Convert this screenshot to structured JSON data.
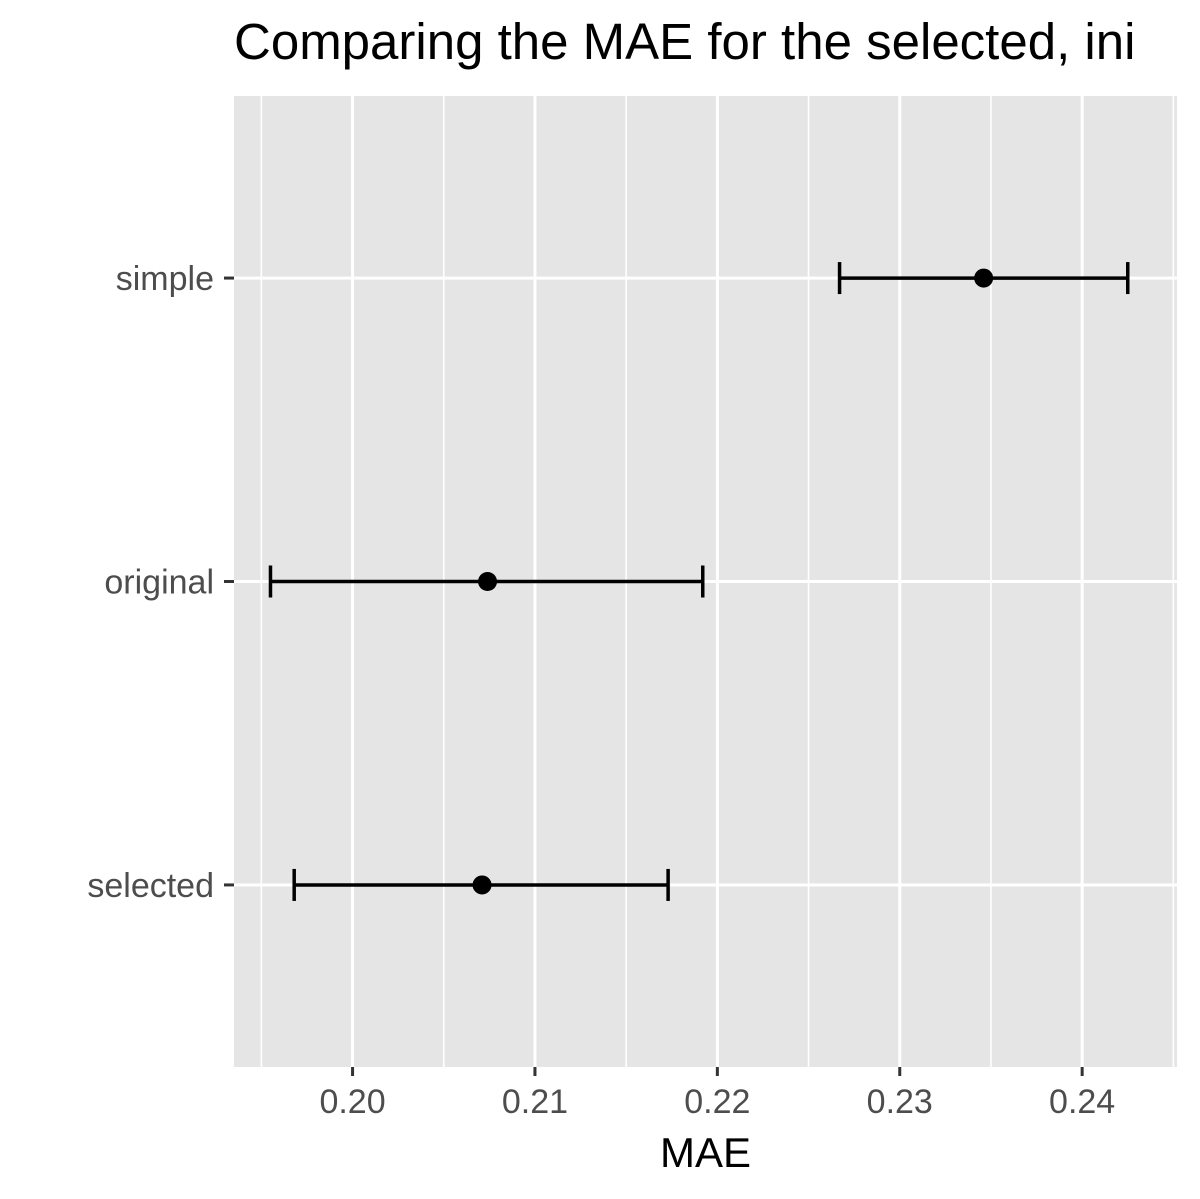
{
  "chart_data": {
    "type": "errorbar",
    "title": "Comparing the MAE for the selected, ini",
    "xlabel": "MAE",
    "ylabel": "",
    "xlim": [
      0.1935,
      0.2452
    ],
    "x_ticks": [
      "0.20",
      "0.21",
      "0.22",
      "0.23",
      "0.24"
    ],
    "x_tick_values": [
      0.2,
      0.21,
      0.22,
      0.23,
      0.24
    ],
    "categories": [
      "selected",
      "original",
      "simple"
    ],
    "points": [
      {
        "label": "selected",
        "value": 0.2071,
        "lower": 0.1968,
        "upper": 0.2173
      },
      {
        "label": "original",
        "value": 0.2074,
        "lower": 0.1955,
        "upper": 0.2192
      },
      {
        "label": "simple",
        "value": 0.2346,
        "lower": 0.2267,
        "upper": 0.2425
      }
    ],
    "grid": true,
    "legend": "none",
    "colors": {
      "panel_background": "#e5e5e5",
      "grid": "#ffffff",
      "marks": "#000000",
      "tick_text": "#4d4d4d",
      "tick_marks": "#333333"
    }
  }
}
